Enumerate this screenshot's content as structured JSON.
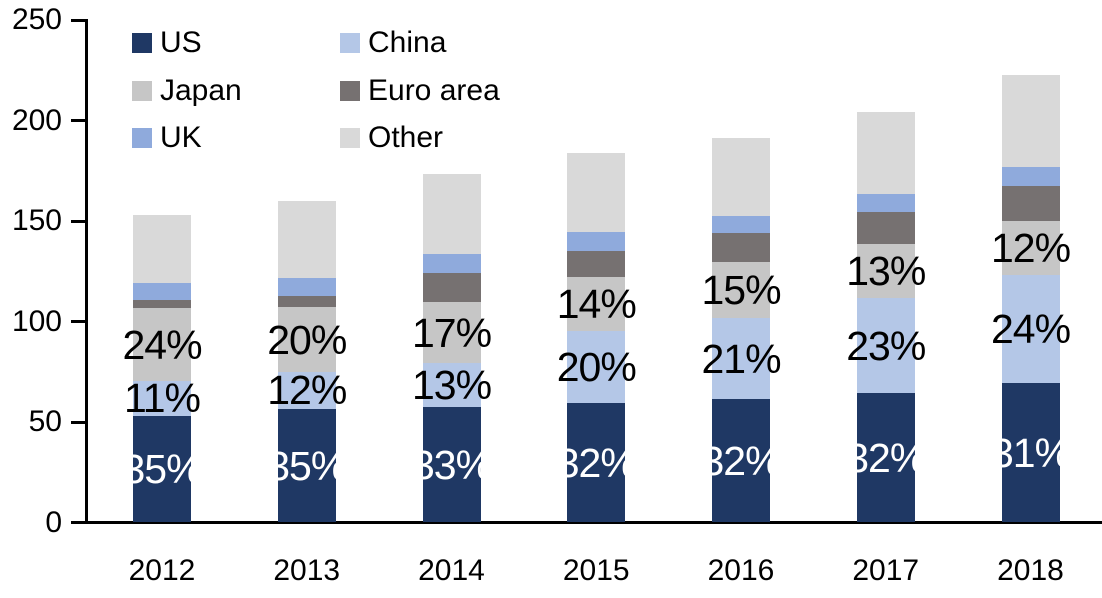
{
  "chart_data": {
    "type": "bar",
    "stacked": true,
    "title": "",
    "xlabel": "",
    "ylabel": "",
    "categories": [
      "2012",
      "2013",
      "2014",
      "2015",
      "2016",
      "2017",
      "2018"
    ],
    "series": [
      {
        "name": "US",
        "color": "#1F3864",
        "values": [
          53,
          56.5,
          57.5,
          59.5,
          61.5,
          64.5,
          69.5
        ],
        "labels": [
          "35%",
          "35%",
          "33%",
          "32%",
          "32%",
          "32%",
          "31%"
        ],
        "label_color": "#FFFFFF"
      },
      {
        "name": "China",
        "color": "#B4C7E7",
        "values": [
          17.5,
          18.5,
          22,
          36,
          40,
          47,
          53.5
        ],
        "labels": [
          "11%",
          "12%",
          "13%",
          "20%",
          "21%",
          "23%",
          "24%"
        ],
        "label_color": "#000000"
      },
      {
        "name": "Japan",
        "color": "#C6C6C6",
        "values": [
          36,
          32,
          30,
          26.5,
          28,
          27,
          27
        ],
        "labels": [
          "24%",
          "20%",
          "17%",
          "14%",
          "15%",
          "13%",
          "12%"
        ],
        "label_color": "#000000"
      },
      {
        "name": "Euro area",
        "color": "#767171",
        "values": [
          4,
          5.5,
          14.5,
          13,
          14.5,
          16,
          17.5
        ],
        "labels": null,
        "label_color": null
      },
      {
        "name": "UK",
        "color": "#8FAADC",
        "values": [
          8.5,
          9,
          9.5,
          9.5,
          8.5,
          9,
          9.5
        ],
        "labels": null,
        "label_color": null
      },
      {
        "name": "Other",
        "color": "#D9D9D9",
        "values": [
          34,
          38.5,
          40,
          39.5,
          39,
          40.5,
          45.5
        ],
        "labels": null,
        "label_color": null
      }
    ],
    "totals": [
      153,
      160,
      173.5,
      184,
      191.5,
      204,
      222.5
    ],
    "ylim": [
      0,
      250
    ],
    "yticks": [
      0,
      50,
      100,
      150,
      200,
      250
    ],
    "grid": false,
    "legend_position": "top-left",
    "legend_columns": 2,
    "legend_order": [
      "US",
      "China",
      "Japan",
      "Euro area",
      "UK",
      "Other"
    ],
    "axis_color": "#000000",
    "background_color": "#FFFFFF"
  }
}
